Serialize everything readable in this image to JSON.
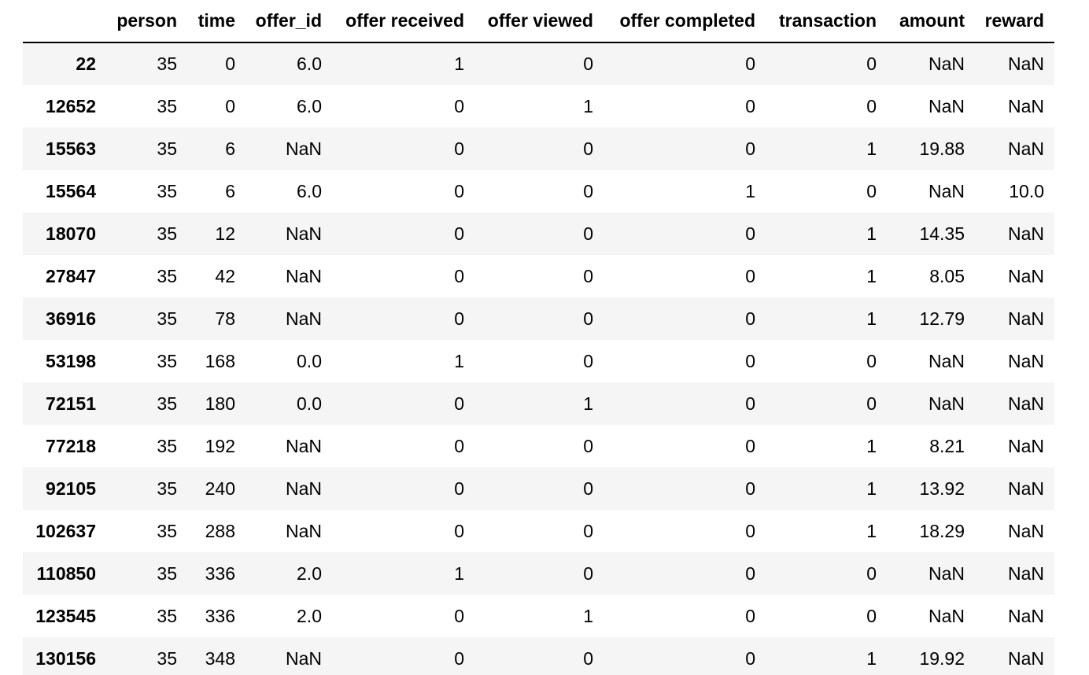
{
  "table": {
    "columns": [
      "",
      "person",
      "time",
      "offer_id",
      "offer received",
      "offer viewed",
      "offer completed",
      "transaction",
      "amount",
      "reward"
    ],
    "rows": [
      {
        "index": "22",
        "cells": [
          "35",
          "0",
          "6.0",
          "1",
          "0",
          "0",
          "0",
          "NaN",
          "NaN"
        ]
      },
      {
        "index": "12652",
        "cells": [
          "35",
          "0",
          "6.0",
          "0",
          "1",
          "0",
          "0",
          "NaN",
          "NaN"
        ]
      },
      {
        "index": "15563",
        "cells": [
          "35",
          "6",
          "NaN",
          "0",
          "0",
          "0",
          "1",
          "19.88",
          "NaN"
        ]
      },
      {
        "index": "15564",
        "cells": [
          "35",
          "6",
          "6.0",
          "0",
          "0",
          "1",
          "0",
          "NaN",
          "10.0"
        ]
      },
      {
        "index": "18070",
        "cells": [
          "35",
          "12",
          "NaN",
          "0",
          "0",
          "0",
          "1",
          "14.35",
          "NaN"
        ]
      },
      {
        "index": "27847",
        "cells": [
          "35",
          "42",
          "NaN",
          "0",
          "0",
          "0",
          "1",
          "8.05",
          "NaN"
        ]
      },
      {
        "index": "36916",
        "cells": [
          "35",
          "78",
          "NaN",
          "0",
          "0",
          "0",
          "1",
          "12.79",
          "NaN"
        ]
      },
      {
        "index": "53198",
        "cells": [
          "35",
          "168",
          "0.0",
          "1",
          "0",
          "0",
          "0",
          "NaN",
          "NaN"
        ]
      },
      {
        "index": "72151",
        "cells": [
          "35",
          "180",
          "0.0",
          "0",
          "1",
          "0",
          "0",
          "NaN",
          "NaN"
        ]
      },
      {
        "index": "77218",
        "cells": [
          "35",
          "192",
          "NaN",
          "0",
          "0",
          "0",
          "1",
          "8.21",
          "NaN"
        ]
      },
      {
        "index": "92105",
        "cells": [
          "35",
          "240",
          "NaN",
          "0",
          "0",
          "0",
          "1",
          "13.92",
          "NaN"
        ]
      },
      {
        "index": "102637",
        "cells": [
          "35",
          "288",
          "NaN",
          "0",
          "0",
          "0",
          "1",
          "18.29",
          "NaN"
        ]
      },
      {
        "index": "110850",
        "cells": [
          "35",
          "336",
          "2.0",
          "1",
          "0",
          "0",
          "0",
          "NaN",
          "NaN"
        ]
      },
      {
        "index": "123545",
        "cells": [
          "35",
          "336",
          "2.0",
          "0",
          "1",
          "0",
          "0",
          "NaN",
          "NaN"
        ]
      },
      {
        "index": "130156",
        "cells": [
          "35",
          "348",
          "NaN",
          "0",
          "0",
          "0",
          "1",
          "19.92",
          "NaN"
        ]
      }
    ]
  },
  "colors": {
    "stripe": "#f5f5f5",
    "background": "#ffffff",
    "text": "#000000",
    "header_rule": "#000000"
  }
}
